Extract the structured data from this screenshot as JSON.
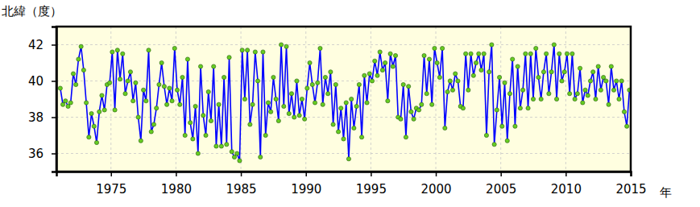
{
  "chart_data": {
    "type": "line",
    "y_label": "北緯（度）",
    "x_label": "年",
    "xlim": [
      1970.8,
      2015
    ],
    "xticks": [
      1975,
      1980,
      1985,
      1990,
      1995,
      2000,
      2005,
      2010,
      2015
    ],
    "ylim": [
      35,
      43
    ],
    "yticks": [
      36,
      38,
      40,
      42
    ],
    "grid": true,
    "color": "#0000ff",
    "marker": "circle",
    "x": [
      1971.1,
      1971.3,
      1971.5,
      1971.7,
      1971.9,
      1972.1,
      1972.3,
      1972.5,
      1972.7,
      1972.9,
      1973.1,
      1973.3,
      1973.5,
      1973.7,
      1973.9,
      1974.1,
      1974.3,
      1974.5,
      1974.7,
      1974.9,
      1975.1,
      1975.3,
      1975.5,
      1975.7,
      1975.9,
      1976.1,
      1976.3,
      1976.5,
      1976.7,
      1976.9,
      1977.1,
      1977.3,
      1977.5,
      1977.7,
      1977.9,
      1978.1,
      1978.3,
      1978.5,
      1978.7,
      1978.9,
      1979.1,
      1979.3,
      1979.5,
      1979.7,
      1979.9,
      1980.1,
      1980.3,
      1980.5,
      1980.7,
      1980.9,
      1981.1,
      1981.3,
      1981.5,
      1981.7,
      1981.9,
      1982.1,
      1982.3,
      1982.5,
      1982.7,
      1982.9,
      1983.1,
      1983.3,
      1983.5,
      1983.7,
      1983.9,
      1984.1,
      1984.3,
      1984.5,
      1984.7,
      1984.9,
      1985.1,
      1985.3,
      1985.5,
      1985.7,
      1985.9,
      1986.1,
      1986.3,
      1986.5,
      1986.7,
      1986.9,
      1987.1,
      1987.3,
      1987.5,
      1987.7,
      1987.9,
      1988.1,
      1988.3,
      1988.5,
      1988.7,
      1988.9,
      1989.1,
      1989.3,
      1989.5,
      1989.7,
      1989.9,
      1990.1,
      1990.3,
      1990.5,
      1990.7,
      1990.9,
      1991.1,
      1991.3,
      1991.5,
      1991.7,
      1991.9,
      1992.1,
      1992.3,
      1992.5,
      1992.7,
      1992.9,
      1993.1,
      1993.3,
      1993.5,
      1993.7,
      1993.9,
      1994.1,
      1994.3,
      1994.5,
      1994.7,
      1994.9,
      1995.1,
      1995.3,
      1995.5,
      1995.7,
      1995.9,
      1996.1,
      1996.3,
      1996.5,
      1996.7,
      1996.9,
      1997.1,
      1997.3,
      1997.5,
      1997.7,
      1997.9,
      1998.1,
      1998.3,
      1998.5,
      1998.7,
      1998.9,
      1999.1,
      1999.3,
      1999.5,
      1999.7,
      1999.9,
      2000.1,
      2000.3,
      2000.5,
      2000.7,
      2000.9,
      2001.1,
      2001.3,
      2001.5,
      2001.7,
      2001.9,
      2002.1,
      2002.3,
      2002.5,
      2002.7,
      2002.9,
      2003.1,
      2003.3,
      2003.5,
      2003.7,
      2003.9,
      2004.1,
      2004.3,
      2004.5,
      2004.7,
      2004.9,
      2005.1,
      2005.3,
      2005.5,
      2005.7,
      2005.9,
      2006.1,
      2006.3,
      2006.5,
      2006.7,
      2006.9,
      2007.1,
      2007.3,
      2007.5,
      2007.7,
      2007.9,
      2008.1,
      2008.3,
      2008.5,
      2008.7,
      2008.9,
      2009.1,
      2009.3,
      2009.5,
      2009.7,
      2009.9,
      2010.1,
      2010.3,
      2010.5,
      2010.7,
      2010.9,
      2011.1,
      2011.3,
      2011.5,
      2011.7,
      2011.9,
      2012.1,
      2012.3,
      2012.5,
      2012.7,
      2012.9,
      2013.1,
      2013.3,
      2013.5,
      2013.7,
      2013.9,
      2014.1,
      2014.3,
      2014.5,
      2014.7,
      2014.9
    ],
    "values": [
      39.6,
      38.7,
      38.9,
      38.6,
      38.8,
      40.4,
      39.8,
      41.2,
      41.9,
      40.6,
      38.8,
      36.9,
      38.2,
      37.5,
      36.6,
      38.3,
      39.2,
      38.4,
      39.8,
      39.9,
      41.6,
      38.4,
      41.7,
      40.1,
      41.5,
      39.3,
      40.0,
      40.5,
      38.9,
      39.9,
      38.0,
      36.7,
      39.5,
      38.9,
      41.7,
      37.2,
      37.6,
      38.5,
      39.8,
      41.0,
      39.7,
      38.7,
      39.6,
      38.9,
      41.8,
      39.5,
      38.7,
      40.2,
      37.0,
      41.2,
      37.7,
      36.8,
      38.6,
      36.0,
      40.8,
      38.1,
      37.0,
      39.4,
      37.8,
      40.8,
      36.4,
      38.7,
      36.4,
      40.2,
      36.5,
      41.3,
      36.1,
      35.8,
      36.0,
      35.6,
      41.7,
      39.0,
      41.7,
      37.6,
      38.7,
      41.6,
      40.0,
      35.8,
      41.6,
      37.0,
      38.8,
      38.3,
      40.2,
      39.0,
      37.8,
      42.0,
      38.6,
      41.9,
      38.2,
      39.3,
      38.0,
      40.0,
      38.1,
      39.0,
      37.9,
      39.6,
      41.0,
      39.8,
      38.8,
      39.9,
      41.8,
      38.7,
      40.2,
      39.3,
      40.5,
      37.6,
      39.8,
      37.2,
      38.5,
      36.8,
      38.8,
      35.7,
      39.0,
      37.4,
      38.6,
      39.8,
      36.9,
      40.3,
      38.8,
      40.4,
      40.0,
      41.1,
      40.3,
      41.6,
      40.6,
      41.0,
      38.9,
      41.5,
      40.8,
      41.4,
      38.0,
      37.9,
      39.8,
      36.9,
      39.7,
      38.3,
      37.9,
      38.5,
      38.4,
      38.7,
      41.4,
      39.3,
      41.2,
      38.7,
      41.8,
      41.0,
      40.2,
      41.8,
      37.4,
      39.4,
      40.0,
      39.5,
      40.4,
      40.0,
      38.6,
      38.5,
      41.5,
      39.5,
      41.5,
      40.3,
      41.0,
      41.5,
      40.6,
      41.5,
      37.0,
      40.5,
      42.0,
      36.5,
      38.4,
      40.2,
      37.5,
      39.9,
      36.7,
      39.3,
      41.2,
      37.5,
      40.8,
      38.5,
      39.5,
      41.5,
      38.5,
      41.5,
      39.0,
      41.8,
      40.2,
      39.0,
      40.5,
      41.5,
      39.3,
      40.5,
      42.0,
      39.0,
      41.5,
      40.0,
      40.5,
      41.5,
      39.3,
      41.5,
      39.0,
      39.3,
      40.7,
      38.8,
      39.5,
      39.2,
      40.0,
      40.5,
      39.0,
      40.8,
      39.5,
      40.2,
      40.0,
      38.7,
      40.8,
      39.5,
      40.0,
      39.0,
      40.0,
      38.3,
      37.5,
      39.5
    ]
  }
}
